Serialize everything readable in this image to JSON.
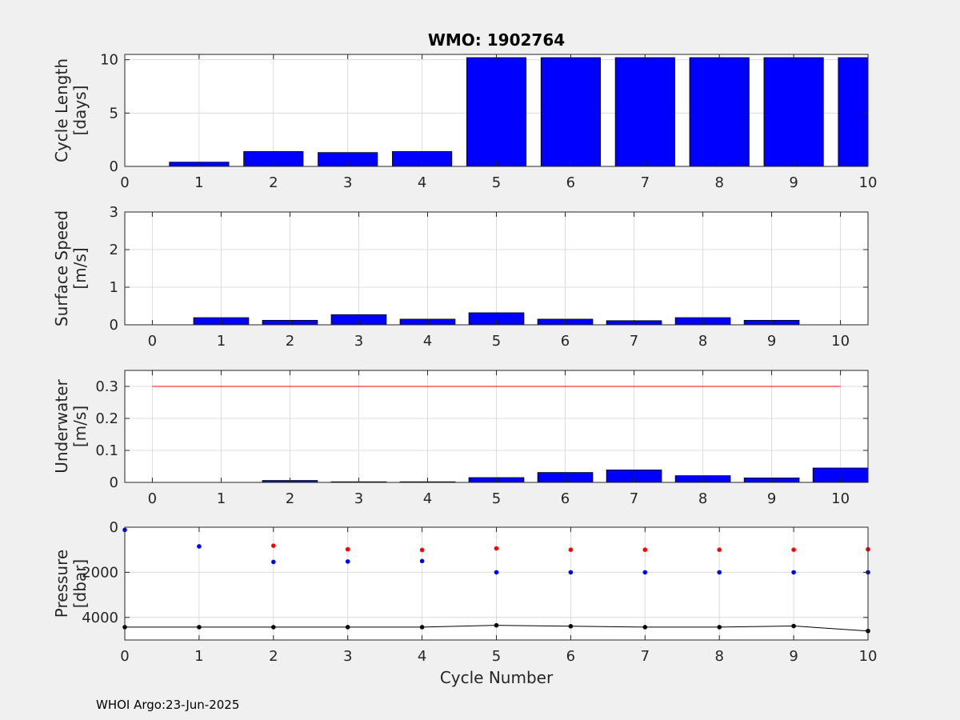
{
  "footer": "WHOI Argo:23-Jun-2025",
  "colors": {
    "bar": "#0000ff",
    "red": "#ff0000",
    "black": "#000000",
    "grid": "#dcdcdc",
    "axis": "#262626"
  },
  "chart_data": [
    {
      "type": "bar",
      "title": "WMO: 1902764",
      "ylabel": [
        "Cycle Length",
        "[days]"
      ],
      "xlim": [
        0,
        10
      ],
      "ylim": [
        0,
        10.5
      ],
      "xticks": [
        0,
        1,
        2,
        3,
        4,
        5,
        6,
        7,
        8,
        9,
        10
      ],
      "yticks": [
        0,
        5,
        10
      ],
      "x": [
        1,
        2,
        3,
        4,
        5,
        6,
        7,
        8,
        9,
        10
      ],
      "values": [
        0.4,
        1.4,
        1.3,
        1.4,
        10.2,
        10.2,
        10.2,
        10.2,
        10.2,
        10.2
      ],
      "grid": true
    },
    {
      "type": "bar",
      "ylabel": [
        "Surface Speed",
        "[m/s]"
      ],
      "xlim": [
        -0.4,
        10.4
      ],
      "ylim": [
        0,
        3
      ],
      "xticks": [
        0,
        1,
        2,
        3,
        4,
        5,
        6,
        7,
        8,
        9,
        10
      ],
      "yticks": [
        0,
        1,
        2,
        3
      ],
      "x": [
        1,
        2,
        3,
        4,
        5,
        6,
        7,
        8,
        9
      ],
      "values": [
        0.19,
        0.12,
        0.27,
        0.15,
        0.32,
        0.15,
        0.11,
        0.19,
        0.12
      ],
      "grid": true
    },
    {
      "type": "bar",
      "ylabel": [
        "Underwater",
        "[m/s]"
      ],
      "xlim": [
        -0.4,
        10.4
      ],
      "ylim": [
        0,
        0.35
      ],
      "xticks": [
        0,
        1,
        2,
        3,
        4,
        5,
        6,
        7,
        8,
        9,
        10
      ],
      "yticks": [
        0,
        0.1,
        0.2,
        0.3
      ],
      "x": [
        2,
        3,
        4,
        5,
        6,
        7,
        8,
        9,
        10
      ],
      "values": [
        0.006,
        0.002,
        0.002,
        0.015,
        0.031,
        0.039,
        0.021,
        0.014,
        0.045
      ],
      "reference_line": {
        "y": 0.3,
        "x": [
          0,
          10
        ]
      },
      "grid": true
    },
    {
      "type": "scatter",
      "ylabel": [
        "Pressure",
        "[dbar]"
      ],
      "xlabel": "Cycle Number",
      "xlim": [
        0,
        10
      ],
      "ylim": [
        5000,
        0
      ],
      "y_reversed": true,
      "xticks": [
        0,
        1,
        2,
        3,
        4,
        5,
        6,
        7,
        8,
        9,
        10
      ],
      "yticks": [
        0,
        2000,
        4000
      ],
      "series": [
        {
          "color": "blue",
          "x": [
            0,
            1,
            2,
            3,
            4,
            5,
            6,
            7,
            8,
            9,
            10
          ],
          "values": [
            120,
            850,
            1540,
            1520,
            1500,
            2000,
            2000,
            2000,
            2000,
            2000,
            2000
          ]
        },
        {
          "color": "red",
          "x": [
            2,
            3,
            4,
            5,
            6,
            7,
            8,
            9,
            10
          ],
          "values": [
            820,
            980,
            1010,
            940,
            1000,
            1000,
            1000,
            1000,
            980
          ]
        },
        {
          "color": "black",
          "x": [
            0,
            1,
            2,
            3,
            4,
            5,
            6,
            7,
            8,
            9,
            10
          ],
          "values": [
            4430,
            4430,
            4430,
            4430,
            4430,
            4350,
            4390,
            4430,
            4430,
            4380,
            4600
          ],
          "line": true
        }
      ],
      "grid": true
    }
  ]
}
